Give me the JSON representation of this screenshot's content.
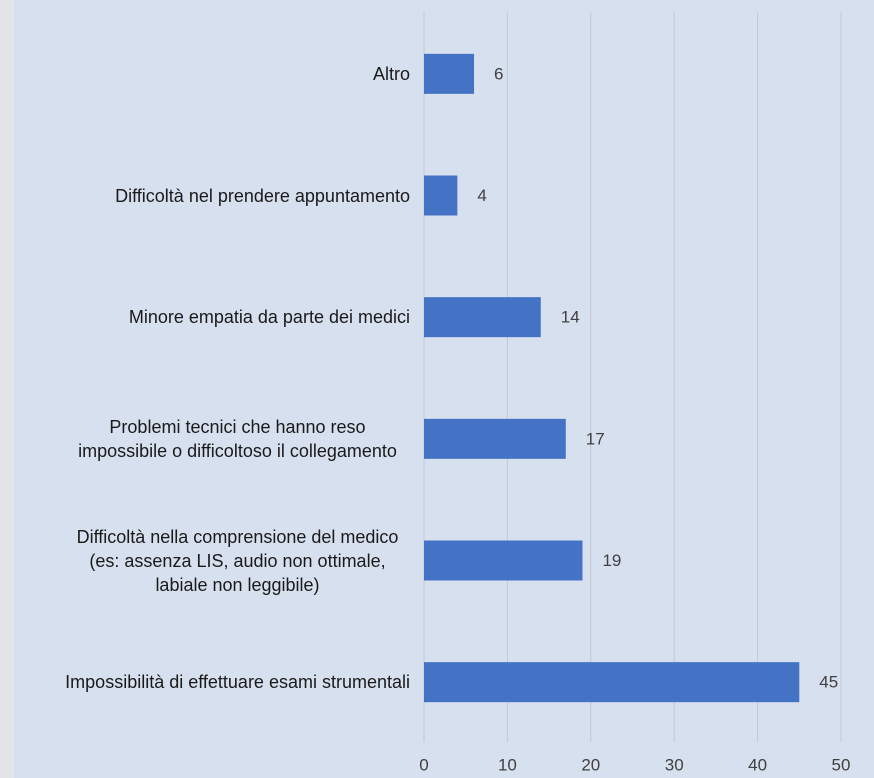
{
  "chart_data": {
    "type": "bar",
    "orientation": "horizontal",
    "categories": [
      "Altro",
      "Difficoltà nel prendere appuntamento",
      "Minore empatia da parte dei medici",
      "Problemi tecnici che hanno reso impossibile o difficoltoso il collegamento",
      "Difficoltà nella comprensione del medico (es: assenza LIS, audio non ottimale, labiale non leggibile)",
      "Impossibilità di effettuare esami strumentali"
    ],
    "values": [
      6,
      4,
      14,
      17,
      19,
      45
    ],
    "color": "#4472c4",
    "xlim": [
      0,
      50
    ],
    "xticks": [
      0,
      10,
      20,
      30,
      40,
      50
    ],
    "grid": true
  }
}
